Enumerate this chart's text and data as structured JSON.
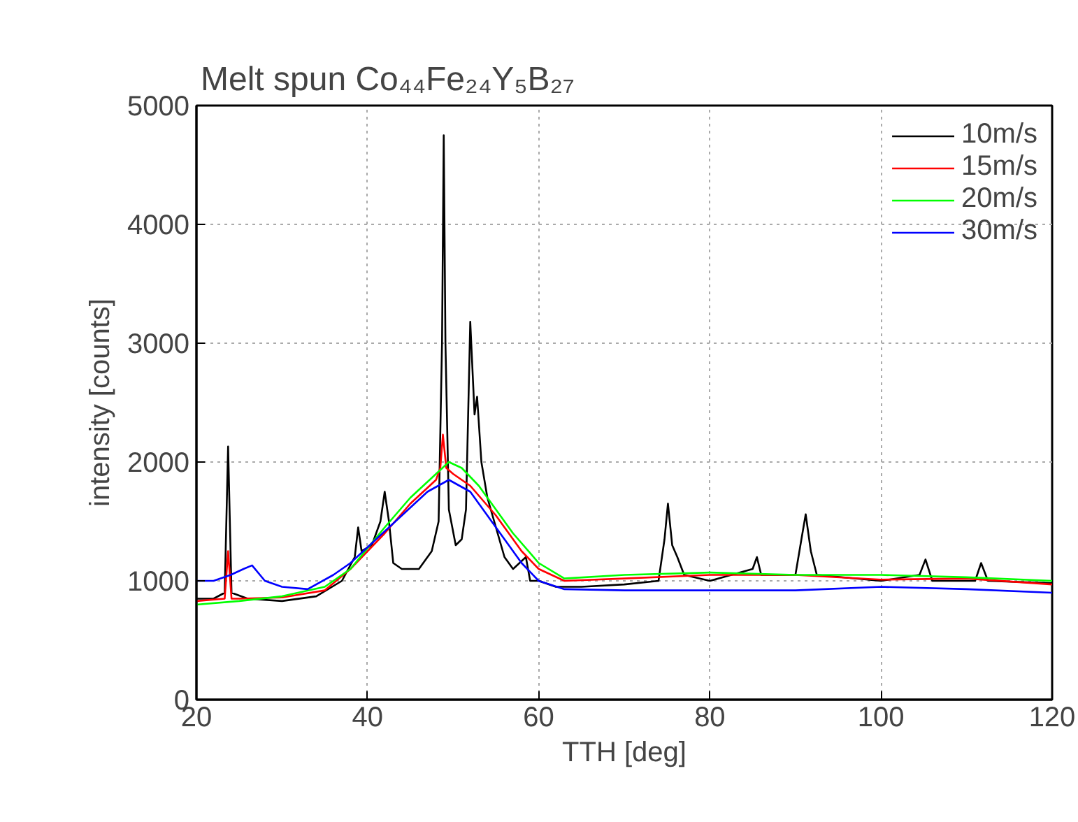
{
  "chart_data": {
    "type": "line",
    "title": "Melt spun Co₄₄Fe₂₄Y₅B₂₇",
    "xlabel": "TTH [deg]",
    "ylabel": "intensity [counts]",
    "xlim": [
      20,
      120
    ],
    "ylim": [
      0,
      5000
    ],
    "xticks": [
      20,
      40,
      60,
      80,
      100,
      120
    ],
    "yticks": [
      0,
      1000,
      2000,
      3000,
      4000,
      5000
    ],
    "grid": true,
    "legend": "top right",
    "line_style": "solid",
    "marker": "none",
    "series": [
      {
        "name": "10m/s",
        "color": "#000000",
        "x": [
          20,
          22,
          23.3,
          23.7,
          24.1,
          26,
          30,
          34,
          37,
          38.5,
          38.9,
          39.3,
          40.5,
          41.5,
          42,
          42.5,
          43,
          44,
          46,
          47.5,
          48.3,
          48.7,
          48.9,
          49.1,
          49.5,
          50.3,
          51,
          51.5,
          52,
          52.5,
          52.8,
          53.3,
          54,
          55,
          56,
          57,
          58.5,
          59,
          60,
          62,
          65,
          70,
          74,
          74.7,
          75.1,
          75.6,
          76.2,
          77,
          80,
          85,
          85.5,
          86,
          90,
          90.7,
          91.2,
          91.8,
          92.5,
          100,
          104.5,
          105.2,
          106,
          111,
          111.7,
          112.5,
          120
        ],
        "values": [
          850,
          850,
          900,
          2130,
          900,
          850,
          830,
          870,
          1000,
          1200,
          1450,
          1250,
          1300,
          1500,
          1750,
          1500,
          1150,
          1100,
          1100,
          1250,
          1500,
          3000,
          4750,
          3000,
          1600,
          1300,
          1350,
          1600,
          3180,
          2400,
          2550,
          2000,
          1700,
          1450,
          1200,
          1100,
          1200,
          1000,
          1000,
          950,
          950,
          970,
          1000,
          1350,
          1650,
          1300,
          1200,
          1050,
          1000,
          1100,
          1200,
          1050,
          1050,
          1350,
          1560,
          1250,
          1050,
          1000,
          1050,
          1180,
          1000,
          1000,
          1150,
          1000,
          980
        ]
      },
      {
        "name": "15m/s",
        "color": "#ff0000",
        "x": [
          20,
          23.3,
          23.7,
          24.1,
          25,
          30,
          35,
          38,
          42,
          45,
          48,
          48.5,
          48.8,
          49.2,
          50,
          52,
          55,
          58,
          60,
          63,
          70,
          80,
          90,
          100,
          110,
          120
        ],
        "values": [
          830,
          850,
          1250,
          850,
          850,
          860,
          920,
          1100,
          1400,
          1650,
          1850,
          1950,
          2230,
          1950,
          1900,
          1800,
          1550,
          1250,
          1100,
          1000,
          1020,
          1050,
          1050,
          1010,
          1020,
          970
        ]
      },
      {
        "name": "20m/s",
        "color": "#00ff00",
        "x": [
          20,
          25,
          30,
          35,
          38,
          42,
          45,
          48,
          49.5,
          51,
          53,
          55,
          57,
          60,
          63,
          70,
          80,
          90,
          100,
          110,
          120
        ],
        "values": [
          800,
          830,
          870,
          950,
          1100,
          1450,
          1700,
          1900,
          2000,
          1950,
          1800,
          1600,
          1400,
          1150,
          1020,
          1050,
          1070,
          1050,
          1050,
          1030,
          1000
        ]
      },
      {
        "name": "30m/s",
        "color": "#0000ff",
        "x": [
          20,
          22,
          24,
          25.5,
          26.5,
          28,
          30,
          33,
          36,
          38,
          41,
          44,
          47,
          49.5,
          52,
          55,
          58,
          60,
          63,
          70,
          80,
          90,
          100,
          110,
          120
        ],
        "values": [
          1000,
          1000,
          1050,
          1100,
          1130,
          1000,
          950,
          930,
          1050,
          1150,
          1350,
          1550,
          1750,
          1850,
          1750,
          1450,
          1150,
          1000,
          930,
          920,
          920,
          920,
          950,
          930,
          900
        ]
      }
    ]
  }
}
